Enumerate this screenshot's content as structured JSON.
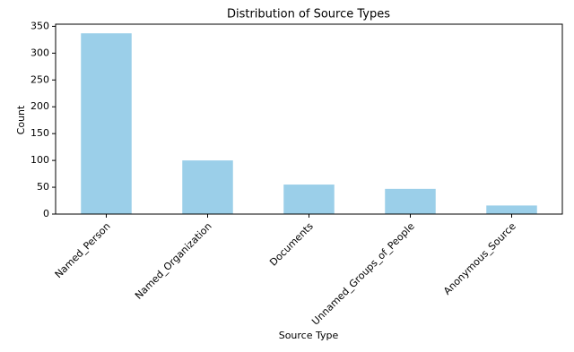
{
  "chart_data": {
    "type": "bar",
    "title": "Distribution of Source Types",
    "x_label": "Source Type",
    "y_label": "Count",
    "categories": [
      "Named_Person",
      "Named_Organization",
      "Documents",
      "Unnamed_Groups_of_People",
      "Anonymous_Source"
    ],
    "values": [
      337,
      100,
      55,
      47,
      16
    ],
    "color": "#9bcfe9",
    "ylim": [
      0,
      354
    ],
    "yticks": [
      0,
      50,
      100,
      150,
      200,
      250,
      300,
      350
    ]
  }
}
